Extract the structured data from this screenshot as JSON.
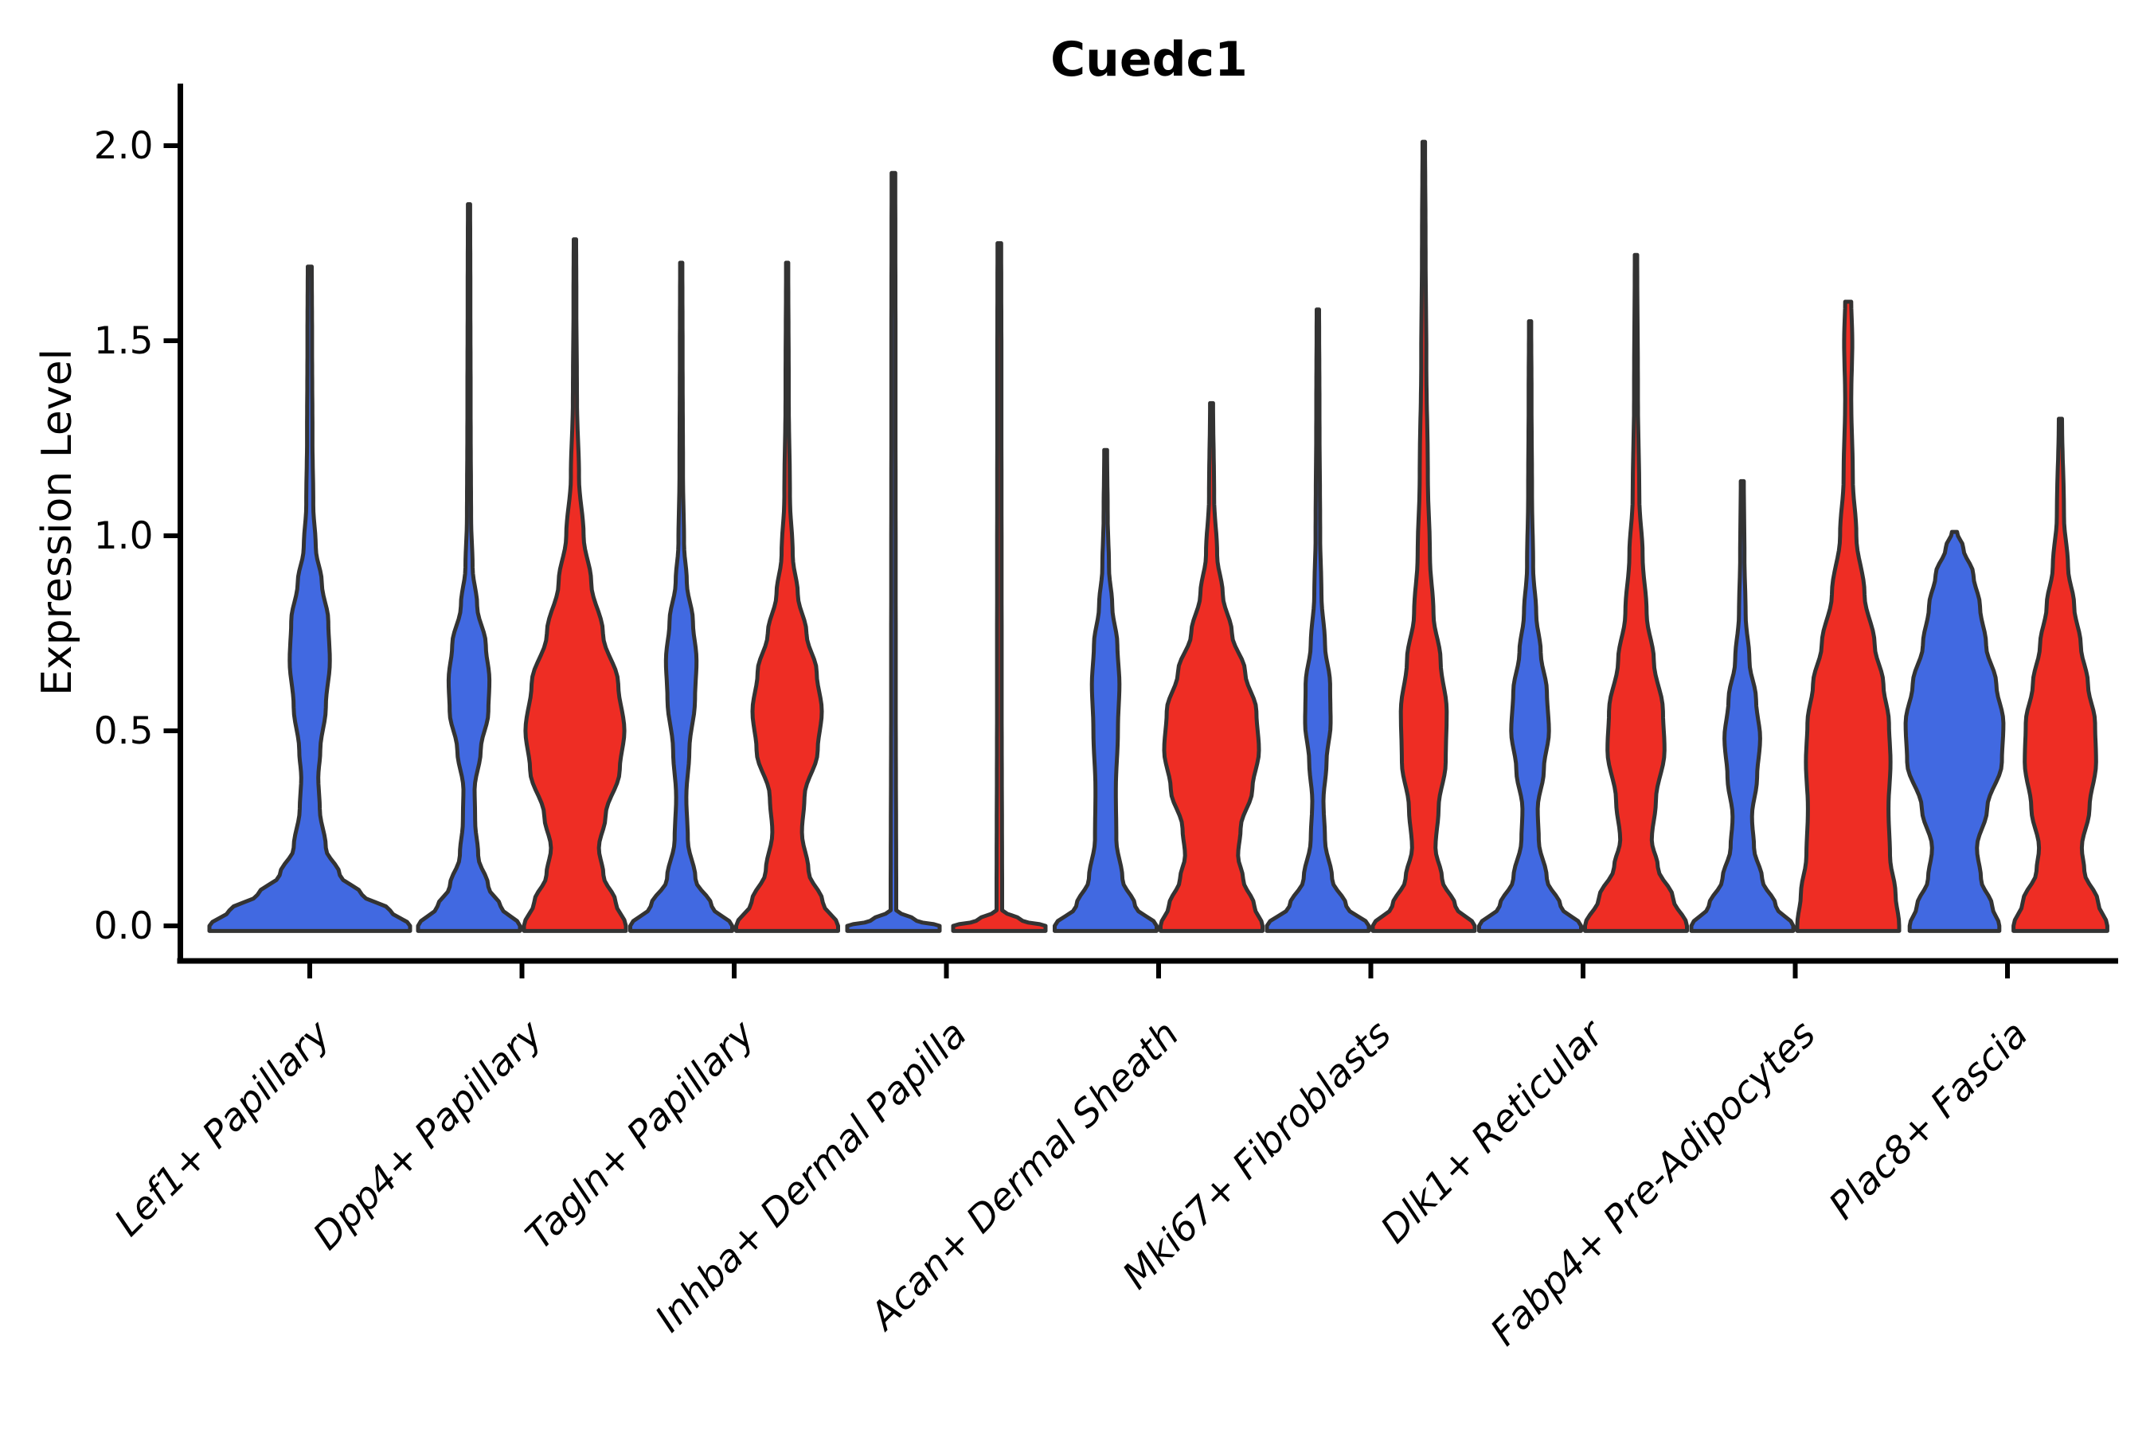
{
  "title": "Cuedc1",
  "y_axis": {
    "label": "Expression Level"
  },
  "colors": {
    "blue": "#4169E1",
    "red": "#EE2D24",
    "outline": "#333333",
    "axis": "#000000",
    "background": "#ffffff"
  },
  "chart_data": {
    "type": "violin",
    "title": "Cuedc1",
    "xlabel": "",
    "ylabel": "Expression Level",
    "ylim": [
      -0.09,
      2.13
    ],
    "yticks": [
      0.0,
      0.5,
      1.0,
      1.5,
      2.0
    ],
    "ytick_labels": [
      "0.0",
      "0.5",
      "1.0",
      "1.5",
      "2.0"
    ],
    "grid": false,
    "legend": "none",
    "categories": [
      "Lef1+ Papillary",
      "Dpp4+ Papillary",
      "Tagln+ Papillary",
      "Inhba+ Dermal Papilla",
      "Acan+ Dermal Sheath",
      "Mki67+ Fibroblasts",
      "Dlk1+ Reticular",
      "Fabp4+ Pre-Adipocytes",
      "Plac8+ Fascia"
    ],
    "violins": [
      {
        "category": 0,
        "side": "center",
        "color": "blue",
        "max_value": 1.69,
        "max_halfwidth": 126,
        "profile": [
          [
            0,
            1
          ],
          [
            0.04,
            0.8
          ],
          [
            0.08,
            0.52
          ],
          [
            0.13,
            0.3
          ],
          [
            0.2,
            0.16
          ],
          [
            0.3,
            0.1
          ],
          [
            0.38,
            0.085
          ],
          [
            0.45,
            0.105
          ],
          [
            0.56,
            0.16
          ],
          [
            0.68,
            0.2
          ],
          [
            0.78,
            0.185
          ],
          [
            0.88,
            0.12
          ],
          [
            0.97,
            0.06
          ],
          [
            1.08,
            0.035
          ],
          [
            1.25,
            0.027
          ],
          [
            1.5,
            0.023
          ],
          [
            1.69,
            0.02
          ]
        ]
      },
      {
        "category": 1,
        "side": "left",
        "color": "blue",
        "max_value": 1.85,
        "max_halfwidth": 64,
        "profile": [
          [
            0,
            1
          ],
          [
            0.05,
            0.62
          ],
          [
            0.1,
            0.38
          ],
          [
            0.18,
            0.18
          ],
          [
            0.27,
            0.12
          ],
          [
            0.35,
            0.11
          ],
          [
            0.45,
            0.23
          ],
          [
            0.55,
            0.38
          ],
          [
            0.63,
            0.4
          ],
          [
            0.72,
            0.33
          ],
          [
            0.82,
            0.16
          ],
          [
            0.92,
            0.07
          ],
          [
            1.05,
            0.04
          ],
          [
            1.3,
            0.032
          ],
          [
            1.6,
            0.027
          ],
          [
            1.85,
            0.022
          ]
        ]
      },
      {
        "category": 1,
        "side": "right",
        "color": "red",
        "max_value": 1.76,
        "max_halfwidth": 64,
        "profile": [
          [
            0,
            1
          ],
          [
            0.06,
            0.8
          ],
          [
            0.13,
            0.56
          ],
          [
            0.2,
            0.47
          ],
          [
            0.28,
            0.6
          ],
          [
            0.4,
            0.88
          ],
          [
            0.5,
            0.97
          ],
          [
            0.62,
            0.85
          ],
          [
            0.75,
            0.55
          ],
          [
            0.88,
            0.32
          ],
          [
            1.0,
            0.17
          ],
          [
            1.15,
            0.08
          ],
          [
            1.35,
            0.04
          ],
          [
            1.6,
            0.028
          ],
          [
            1.76,
            0.024
          ]
        ]
      },
      {
        "category": 2,
        "side": "left",
        "color": "blue",
        "max_value": 1.7,
        "max_halfwidth": 64,
        "profile": [
          [
            0,
            1
          ],
          [
            0.05,
            0.6
          ],
          [
            0.12,
            0.28
          ],
          [
            0.22,
            0.13
          ],
          [
            0.33,
            0.1
          ],
          [
            0.45,
            0.16
          ],
          [
            0.58,
            0.27
          ],
          [
            0.68,
            0.3
          ],
          [
            0.78,
            0.23
          ],
          [
            0.88,
            0.11
          ],
          [
            0.98,
            0.055
          ],
          [
            1.15,
            0.035
          ],
          [
            1.45,
            0.027
          ],
          [
            1.7,
            0.022
          ]
        ]
      },
      {
        "category": 2,
        "side": "right",
        "color": "red",
        "max_value": 1.7,
        "max_halfwidth": 64,
        "profile": [
          [
            0,
            1
          ],
          [
            0.06,
            0.7
          ],
          [
            0.14,
            0.42
          ],
          [
            0.24,
            0.29
          ],
          [
            0.33,
            0.34
          ],
          [
            0.45,
            0.6
          ],
          [
            0.55,
            0.68
          ],
          [
            0.65,
            0.58
          ],
          [
            0.75,
            0.38
          ],
          [
            0.85,
            0.21
          ],
          [
            0.95,
            0.11
          ],
          [
            1.1,
            0.055
          ],
          [
            1.35,
            0.032
          ],
          [
            1.7,
            0.022
          ]
        ]
      },
      {
        "category": 3,
        "side": "left",
        "color": "blue",
        "max_value": 1.93,
        "max_halfwidth": 58,
        "profile": [
          [
            0,
            1
          ],
          [
            0.013,
            0.5
          ],
          [
            0.04,
            0.06
          ],
          [
            0.6,
            0.05
          ],
          [
            1.4,
            0.045
          ],
          [
            1.93,
            0.04
          ]
        ]
      },
      {
        "category": 3,
        "side": "right",
        "color": "red",
        "max_value": 1.75,
        "max_halfwidth": 58,
        "profile": [
          [
            0,
            1
          ],
          [
            0.013,
            0.5
          ],
          [
            0.04,
            0.06
          ],
          [
            0.6,
            0.05
          ],
          [
            1.4,
            0.045
          ],
          [
            1.75,
            0.04
          ]
        ]
      },
      {
        "category": 4,
        "side": "left",
        "color": "blue",
        "max_value": 1.22,
        "max_halfwidth": 64,
        "profile": [
          [
            0,
            1
          ],
          [
            0.05,
            0.58
          ],
          [
            0.12,
            0.33
          ],
          [
            0.22,
            0.21
          ],
          [
            0.35,
            0.2
          ],
          [
            0.5,
            0.24
          ],
          [
            0.62,
            0.27
          ],
          [
            0.72,
            0.23
          ],
          [
            0.82,
            0.13
          ],
          [
            0.92,
            0.065
          ],
          [
            1.05,
            0.04
          ],
          [
            1.22,
            0.028
          ]
        ]
      },
      {
        "category": 4,
        "side": "right",
        "color": "red",
        "max_value": 1.34,
        "max_halfwidth": 64,
        "profile": [
          [
            0,
            1
          ],
          [
            0.05,
            0.84
          ],
          [
            0.12,
            0.62
          ],
          [
            0.18,
            0.52
          ],
          [
            0.25,
            0.57
          ],
          [
            0.35,
            0.8
          ],
          [
            0.45,
            0.93
          ],
          [
            0.55,
            0.88
          ],
          [
            0.65,
            0.66
          ],
          [
            0.75,
            0.4
          ],
          [
            0.85,
            0.22
          ],
          [
            0.95,
            0.11
          ],
          [
            1.1,
            0.05
          ],
          [
            1.34,
            0.03
          ]
        ]
      },
      {
        "category": 5,
        "side": "left",
        "color": "blue",
        "max_value": 1.58,
        "max_halfwidth": 64,
        "profile": [
          [
            0,
            1
          ],
          [
            0.05,
            0.56
          ],
          [
            0.12,
            0.28
          ],
          [
            0.22,
            0.14
          ],
          [
            0.32,
            0.11
          ],
          [
            0.42,
            0.17
          ],
          [
            0.52,
            0.25
          ],
          [
            0.62,
            0.24
          ],
          [
            0.72,
            0.14
          ],
          [
            0.85,
            0.07
          ],
          [
            1.0,
            0.045
          ],
          [
            1.3,
            0.032
          ],
          [
            1.58,
            0.024
          ]
        ]
      },
      {
        "category": 5,
        "side": "right",
        "color": "red",
        "max_value": 2.01,
        "max_halfwidth": 64,
        "profile": [
          [
            0,
            1
          ],
          [
            0.05,
            0.62
          ],
          [
            0.12,
            0.36
          ],
          [
            0.2,
            0.23
          ],
          [
            0.3,
            0.29
          ],
          [
            0.42,
            0.43
          ],
          [
            0.55,
            0.45
          ],
          [
            0.68,
            0.33
          ],
          [
            0.8,
            0.19
          ],
          [
            0.95,
            0.12
          ],
          [
            1.15,
            0.08
          ],
          [
            1.45,
            0.05
          ],
          [
            1.75,
            0.035
          ],
          [
            2.01,
            0.025
          ]
        ]
      },
      {
        "category": 6,
        "side": "left",
        "color": "blue",
        "max_value": 1.55,
        "max_halfwidth": 64,
        "profile": [
          [
            0,
            1
          ],
          [
            0.05,
            0.6
          ],
          [
            0.12,
            0.33
          ],
          [
            0.22,
            0.17
          ],
          [
            0.3,
            0.15
          ],
          [
            0.4,
            0.27
          ],
          [
            0.5,
            0.37
          ],
          [
            0.6,
            0.33
          ],
          [
            0.7,
            0.21
          ],
          [
            0.8,
            0.12
          ],
          [
            0.92,
            0.06
          ],
          [
            1.1,
            0.038
          ],
          [
            1.35,
            0.028
          ],
          [
            1.55,
            0.022
          ]
        ]
      },
      {
        "category": 6,
        "side": "right",
        "color": "red",
        "max_value": 1.72,
        "max_halfwidth": 64,
        "profile": [
          [
            0,
            1
          ],
          [
            0.07,
            0.73
          ],
          [
            0.15,
            0.43
          ],
          [
            0.22,
            0.31
          ],
          [
            0.32,
            0.39
          ],
          [
            0.45,
            0.56
          ],
          [
            0.55,
            0.53
          ],
          [
            0.68,
            0.35
          ],
          [
            0.8,
            0.21
          ],
          [
            0.95,
            0.13
          ],
          [
            1.1,
            0.065
          ],
          [
            1.35,
            0.038
          ],
          [
            1.72,
            0.024
          ]
        ]
      },
      {
        "category": 7,
        "side": "left",
        "color": "blue",
        "max_value": 1.14,
        "max_halfwidth": 64,
        "profile": [
          [
            0,
            1
          ],
          [
            0.05,
            0.66
          ],
          [
            0.12,
            0.39
          ],
          [
            0.2,
            0.23
          ],
          [
            0.28,
            0.19
          ],
          [
            0.38,
            0.29
          ],
          [
            0.48,
            0.35
          ],
          [
            0.58,
            0.27
          ],
          [
            0.68,
            0.14
          ],
          [
            0.8,
            0.065
          ],
          [
            0.95,
            0.042
          ],
          [
            1.14,
            0.03
          ]
        ]
      },
      {
        "category": 7,
        "side": "right",
        "color": "red",
        "max_value": 1.6,
        "max_halfwidth": 64,
        "profile": [
          [
            0,
            1
          ],
          [
            0.08,
            0.93
          ],
          [
            0.18,
            0.82
          ],
          [
            0.3,
            0.79
          ],
          [
            0.42,
            0.83
          ],
          [
            0.52,
            0.8
          ],
          [
            0.62,
            0.69
          ],
          [
            0.72,
            0.52
          ],
          [
            0.85,
            0.32
          ],
          [
            1.0,
            0.16
          ],
          [
            1.15,
            0.09
          ],
          [
            1.35,
            0.06
          ],
          [
            1.5,
            0.08
          ],
          [
            1.6,
            0.06
          ]
        ]
      },
      {
        "category": 8,
        "side": "left",
        "color": "blue",
        "max_value": 1.01,
        "max_halfwidth": 64,
        "profile": [
          [
            0,
            0.88
          ],
          [
            0.05,
            0.74
          ],
          [
            0.12,
            0.52
          ],
          [
            0.2,
            0.44
          ],
          [
            0.3,
            0.64
          ],
          [
            0.42,
            0.93
          ],
          [
            0.52,
            0.96
          ],
          [
            0.62,
            0.82
          ],
          [
            0.72,
            0.62
          ],
          [
            0.82,
            0.5
          ],
          [
            0.9,
            0.37
          ],
          [
            0.97,
            0.17
          ],
          [
            1.01,
            0.05
          ]
        ]
      },
      {
        "category": 8,
        "side": "right",
        "color": "red",
        "max_value": 1.3,
        "max_halfwidth": 64,
        "profile": [
          [
            0,
            0.92
          ],
          [
            0.06,
            0.74
          ],
          [
            0.14,
            0.47
          ],
          [
            0.2,
            0.42
          ],
          [
            0.3,
            0.57
          ],
          [
            0.42,
            0.7
          ],
          [
            0.52,
            0.68
          ],
          [
            0.62,
            0.54
          ],
          [
            0.72,
            0.4
          ],
          [
            0.82,
            0.27
          ],
          [
            0.92,
            0.15
          ],
          [
            1.05,
            0.07
          ],
          [
            1.3,
            0.032
          ]
        ]
      }
    ]
  }
}
